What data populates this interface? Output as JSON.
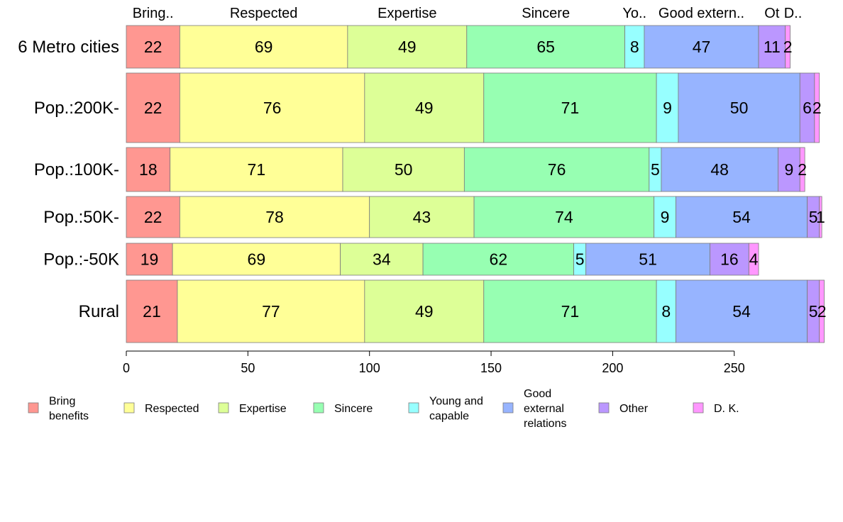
{
  "chart_data": {
    "type": "bar",
    "orientation": "horizontal",
    "stacked": true,
    "categories": [
      "6 Metro cities",
      "Pop.:200K-",
      "Pop.:100K-",
      "Pop.:50K-",
      "Pop.:-50K",
      "Rural"
    ],
    "series": [
      {
        "name": "Bring benefits",
        "short": "Bring..",
        "color": "#FF9791",
        "values": [
          22,
          22,
          18,
          22,
          19,
          21
        ]
      },
      {
        "name": "Respected",
        "short": "Respected",
        "color": "#FFFF97",
        "values": [
          69,
          76,
          71,
          78,
          69,
          77
        ]
      },
      {
        "name": "Expertise",
        "short": "Expertise",
        "color": "#DDFF97",
        "values": [
          49,
          49,
          50,
          43,
          34,
          49
        ]
      },
      {
        "name": "Sincere",
        "short": "Sincere",
        "color": "#97FFB2",
        "values": [
          65,
          71,
          76,
          74,
          62,
          71
        ]
      },
      {
        "name": "Young and capable",
        "short": "Yo..",
        "color": "#97FFFF",
        "values": [
          8,
          9,
          5,
          9,
          5,
          8
        ]
      },
      {
        "name": "Good external relations",
        "short": "Good extern..",
        "color": "#97B4FF",
        "values": [
          47,
          50,
          48,
          54,
          51,
          54
        ]
      },
      {
        "name": "Other",
        "short": "Ot",
        "color": "#BB97FF",
        "values": [
          11,
          6,
          9,
          5,
          16,
          5
        ]
      },
      {
        "name": "D. K.",
        "short": "D..",
        "color": "#FF97FF",
        "values": [
          2,
          2,
          2,
          1,
          4,
          2
        ]
      }
    ],
    "xlim": [
      0,
      290
    ],
    "xticks": [
      0,
      50,
      100,
      150,
      200,
      250
    ],
    "legend_position": "bottom",
    "legend_lines": [
      [
        "Bring",
        "benefits"
      ],
      [
        "Respected"
      ],
      [
        "Expertise"
      ],
      [
        "Sincere"
      ],
      [
        "Young and",
        "capable"
      ],
      [
        "Good",
        "external",
        "relations"
      ],
      [
        "Other"
      ],
      [
        "D. K."
      ]
    ]
  }
}
